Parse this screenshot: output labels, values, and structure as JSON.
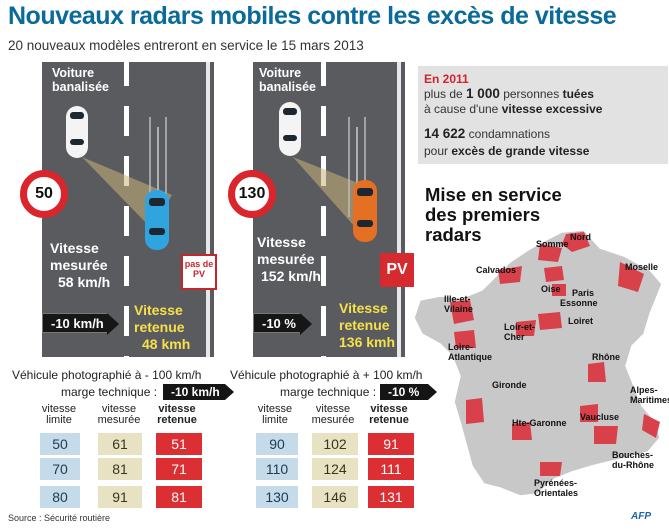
{
  "header": {
    "title": "Nouveaux radars mobiles contre les excès de vitesse",
    "subtitle": "20 nouveaux modèles entreront en service le 15 mars 2013"
  },
  "scenario_1": {
    "car_label": "Voiture banalisée",
    "limit": "50",
    "measured_label": "Vitesse mesurée",
    "measured_value": "58 km/h",
    "tolerance": "-10 km/h",
    "retained_label": "Vitesse retenue",
    "retained_value": "48 kmh",
    "outcome": "pas de PV"
  },
  "scenario_2": {
    "car_label": "Voiture banalisée",
    "limit": "130",
    "measured_label": "Vitesse mesurée",
    "measured_value": "152 km/h",
    "tolerance": "-10 %",
    "retained_label": "Vitesse retenue",
    "retained_value": "136 kmh",
    "outcome": "PV"
  },
  "stats": {
    "year_label": "En 2011",
    "line1_prefix": "plus de",
    "deaths": "1 000",
    "line1_mid": "personnes",
    "line1_bold": "tuées",
    "line2_prefix": "à cause d'une",
    "line2_bold": "vitesse excessive",
    "convictions": "14 622",
    "line3_suffix": "condamnations",
    "line4_prefix": "pour",
    "line4_bold": "excès de grande vitesse"
  },
  "map": {
    "title_line1": "Mise en service",
    "title_line2": "des premiers",
    "title_line3": "radars",
    "regions": [
      "Nord",
      "Somme",
      "Moselle",
      "Calvados",
      "Oise",
      "Paris",
      "Essonne",
      "Ille-et-Vilaine",
      "Loiret",
      "Loir-et-Cher",
      "Loire-Atlantique",
      "Rhône",
      "Gironde",
      "Alpes-Maritimes",
      "Vaucluse",
      "Hte-Garonne",
      "Bouches-du-Rhône",
      "Pyrénées-Orientales"
    ]
  },
  "table_left": {
    "vehicle_label": "Véhicule photographié à - 100 km/h",
    "margin_label": "marge technique :",
    "margin_value": "-10 km/h",
    "headers": [
      "vitesse limite",
      "vitesse mesurée",
      "vitesse retenue"
    ],
    "rows": [
      [
        "50",
        "61",
        "51"
      ],
      [
        "70",
        "81",
        "71"
      ],
      [
        "80",
        "91",
        "81"
      ]
    ]
  },
  "table_right": {
    "vehicle_label": "Véhicule photographié à + 100 km/h",
    "margin_label": "marge technique :",
    "margin_value": "-10 %",
    "headers": [
      "vitesse limite",
      "vitesse mesurée",
      "vitesse retenue"
    ],
    "rows": [
      [
        "90",
        "102",
        "91"
      ],
      [
        "110",
        "124",
        "111"
      ],
      [
        "130",
        "146",
        "131"
      ]
    ]
  },
  "footer": {
    "source": "Source : Sécurité routière",
    "agency": "AFP"
  },
  "colors": {
    "title_blue": "#0a6a9a",
    "alert_red": "#d52a2f",
    "road_gray": "#595b5e",
    "highlight_yellow": "#f7e04a",
    "map_red": "#d8404a",
    "map_gray": "#c8c8c8"
  }
}
